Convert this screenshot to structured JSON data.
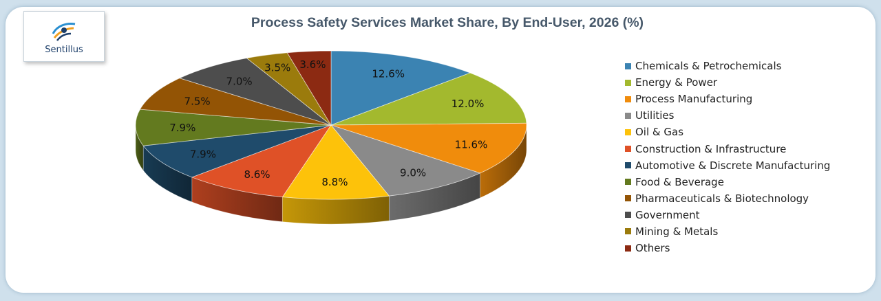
{
  "brand": {
    "name": "Sentillus"
  },
  "chart_data": {
    "type": "pie",
    "title": "Process Safety Services Market Share, By End-User, 2026 (%)",
    "unit": "%",
    "legend_position": "right",
    "categories": [
      "Chemicals & Petrochemicals",
      "Energy & Power",
      "Process Manufacturing",
      "Utilities",
      "Oil & Gas",
      "Construction & Infrastructure",
      "Automotive & Discrete Manufacturing",
      "Food & Beverage",
      "Pharmaceuticals & Biotechnology",
      "Government",
      "Mining & Metals",
      "Others"
    ],
    "values": [
      12.6,
      12.0,
      11.6,
      9.0,
      8.8,
      8.6,
      7.9,
      7.9,
      7.5,
      7.0,
      3.5,
      3.6
    ],
    "labels": [
      "12.6%",
      "12.0%",
      "11.6%",
      "9.0%",
      "8.8%",
      "8.6%",
      "7.9%",
      "7.9%",
      "7.5%",
      "7.0%",
      "3.5%",
      "3.6%"
    ],
    "colors": [
      "#3b83b2",
      "#a3b92e",
      "#f08c0c",
      "#8a8a8a",
      "#fdc20a",
      "#df5127",
      "#1f4b6b",
      "#637a1f",
      "#935405",
      "#4d4d4d",
      "#9b7b0c",
      "#8c2a12"
    ]
  }
}
